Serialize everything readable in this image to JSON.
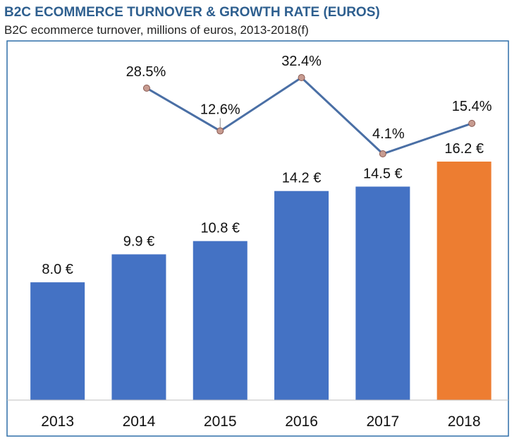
{
  "chart_data": {
    "type": "bar",
    "title": "B2C ECOMMERCE TURNOVER & GROWTH RATE (EUROS)",
    "subtitle": "B2C ecommerce turnover, millions of euros, 2013-2018(f)",
    "categories": [
      "2013",
      "2014",
      "2015",
      "2016",
      "2017",
      "2018"
    ],
    "series": [
      {
        "name": "",
        "type": "bar",
        "values": [
          8.0,
          9.9,
          10.8,
          14.2,
          14.5,
          16.2
        ],
        "labels": [
          "8.0 €",
          "9.9 €",
          "10.8 €",
          "14.2 €",
          "14.5 €",
          "16.2 €"
        ]
      },
      {
        "name": "",
        "type": "line",
        "values": [
          null,
          28.5,
          12.6,
          32.4,
          4.1,
          15.4
        ],
        "labels": [
          "",
          "28.5%",
          "12.6%",
          "32.4%",
          "4.1%",
          "15.4%"
        ]
      }
    ],
    "ylim": [
      0,
      16.2
    ],
    "growth_ylim": [
      4.1,
      32.4
    ],
    "grid": false,
    "legend": "none",
    "colors": {
      "bar": "#4472c4",
      "bar_highlight": "#ed7d31",
      "line": "#4a6fa5",
      "marker": "#c79b90",
      "marker_stroke": "#8a5a52",
      "frame": "#2f6ea8",
      "title": "#2e5f8f"
    }
  }
}
